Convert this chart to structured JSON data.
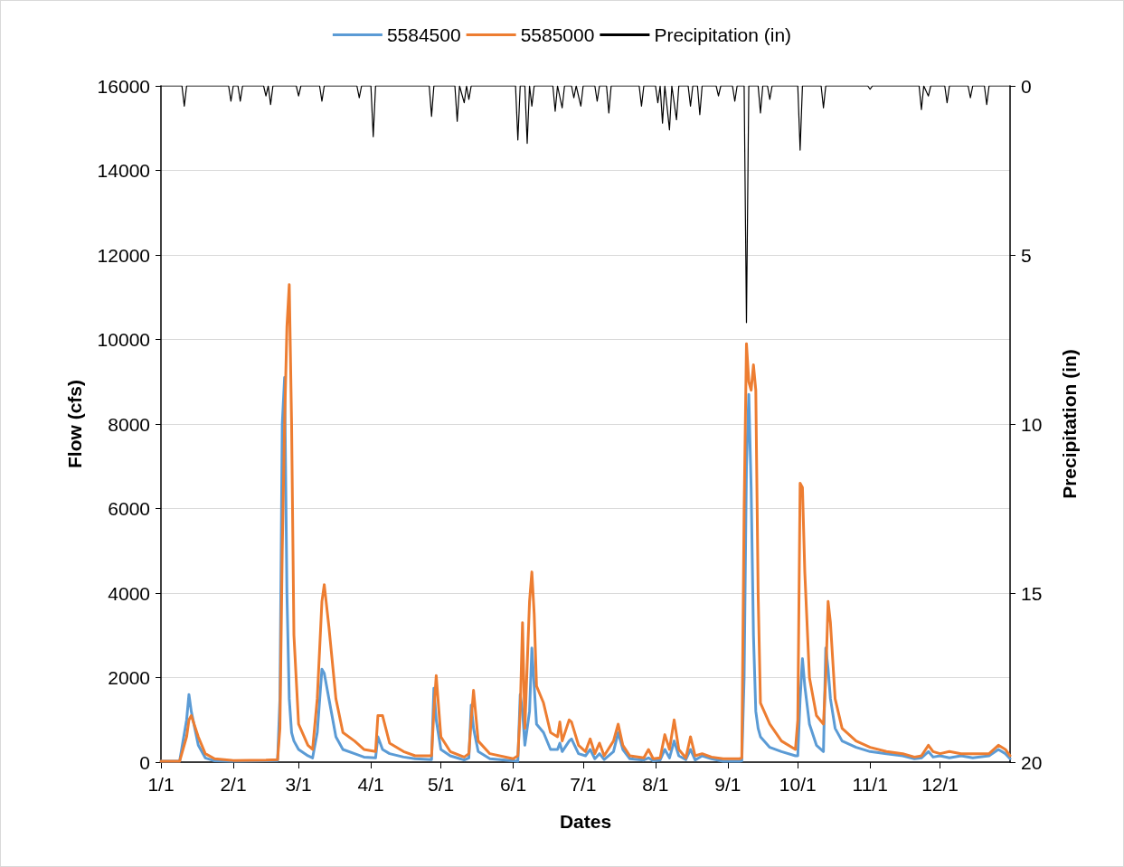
{
  "chart_data": {
    "type": "line",
    "xlabel": "Dates",
    "ylabel": "Flow (cfs)",
    "y2label": "Precipitation (in)",
    "x": [
      "--01-01",
      "--01-09",
      "--01-12",
      "--01-13",
      "--01-14",
      "--01-17",
      "--01-20",
      "--01-24",
      "--02-01",
      "--02-15",
      "--02-20",
      "--02-21",
      "--02-22",
      "--02-23",
      "--02-24",
      "--02-25",
      "--02-26",
      "--02-27",
      "--03-01",
      "--03-05",
      "--03-07",
      "--03-09",
      "--03-11",
      "--03-12",
      "--03-14",
      "--03-17",
      "--03-20",
      "--03-25",
      "--03-29",
      "--04-03",
      "--04-04",
      "--04-06",
      "--04-09",
      "--04-15",
      "--04-20",
      "--04-27",
      "--04-28",
      "--04-29",
      "--05-01",
      "--05-05",
      "--05-11",
      "--05-13",
      "--05-14",
      "--05-15",
      "--05-17",
      "--05-22",
      "--06-01",
      "--06-03",
      "--06-04",
      "--06-05",
      "--06-06",
      "--06-08",
      "--06-09",
      "--06-10",
      "--06-11",
      "--06-14",
      "--06-17",
      "--06-20",
      "--06-21",
      "--06-22",
      "--06-25",
      "--06-26",
      "--06-29",
      "--07-02",
      "--07-04",
      "--07-06",
      "--07-08",
      "--07-10",
      "--07-14",
      "--07-16",
      "--07-18",
      "--07-21",
      "--07-27",
      "--07-29",
      "--07-31",
      "--08-03",
      "--08-05",
      "--08-07",
      "--08-09",
      "--08-11",
      "--08-14",
      "--08-16",
      "--08-18",
      "--08-21",
      "--08-25",
      "--08-30",
      "--09-06",
      "--09-07",
      "--09-08",
      "--09-09",
      "--09-10",
      "--09-11",
      "--09-12",
      "--09-13",
      "--09-14",
      "--09-15",
      "--09-19",
      "--09-24",
      "--09-30",
      "--10-01",
      "--10-02",
      "--10-03",
      "--10-04",
      "--10-06",
      "--10-09",
      "--10-12",
      "--10-13",
      "--10-14",
      "--10-15",
      "--10-17",
      "--10-20",
      "--10-26",
      "--11-01",
      "--11-08",
      "--11-15",
      "--11-20",
      "--11-23",
      "--11-26",
      "--11-28",
      "--12-01",
      "--12-05",
      "--12-10",
      "--12-15",
      "--12-22",
      "--12-26",
      "--12-29",
      "--12-31"
    ],
    "xlim": [
      "--01-01",
      "--12-31"
    ],
    "xticks": [
      {
        "value": "--01-01",
        "label": "1/1"
      },
      {
        "value": "--02-01",
        "label": "2/1"
      },
      {
        "value": "--03-01",
        "label": "3/1"
      },
      {
        "value": "--04-01",
        "label": "4/1"
      },
      {
        "value": "--05-01",
        "label": "5/1"
      },
      {
        "value": "--06-01",
        "label": "6/1"
      },
      {
        "value": "--07-01",
        "label": "7/1"
      },
      {
        "value": "--08-01",
        "label": "8/1"
      },
      {
        "value": "--09-01",
        "label": "9/1"
      },
      {
        "value": "--10-01",
        "label": "10/1"
      },
      {
        "value": "--11-01",
        "label": "11/1"
      },
      {
        "value": "--12-01",
        "label": "12/1"
      }
    ],
    "ylim": [
      0,
      16000
    ],
    "yticks": [
      0,
      2000,
      4000,
      6000,
      8000,
      10000,
      12000,
      14000,
      16000
    ],
    "y2lim": [
      20,
      0
    ],
    "y2ticks": [
      0,
      5,
      10,
      15,
      20
    ],
    "grid": "y",
    "legend": "top",
    "marker": "none",
    "line_style": "solid",
    "series": [
      {
        "name": "5584500",
        "color": "#5b9bd5",
        "values": [
          20,
          20,
          1000,
          1600,
          1200,
          400,
          100,
          30,
          20,
          30,
          40,
          1500,
          8000,
          9100,
          4000,
          1500,
          700,
          500,
          300,
          150,
          100,
          700,
          2200,
          2100,
          1500,
          600,
          300,
          200,
          120,
          100,
          600,
          300,
          200,
          120,
          80,
          60,
          1750,
          1000,
          300,
          150,
          50,
          100,
          1350,
          800,
          250,
          80,
          30,
          20,
          1600,
          1200,
          400,
          1200,
          2700,
          1800,
          900,
          700,
          300,
          300,
          450,
          250,
          500,
          550,
          200,
          150,
          300,
          80,
          200,
          60,
          250,
          700,
          300,
          80,
          50,
          100,
          30,
          50,
          300,
          100,
          500,
          150,
          60,
          300,
          50,
          150,
          80,
          20,
          20,
          30,
          2000,
          7000,
          8700,
          6500,
          3000,
          1200,
          800,
          600,
          350,
          250,
          150,
          150,
          1500,
          2450,
          1800,
          900,
          400,
          250,
          2700,
          2200,
          1500,
          800,
          500,
          350,
          250,
          200,
          150,
          80,
          100,
          250,
          120,
          150,
          100,
          150,
          100,
          150,
          300,
          200,
          80
        ]
      },
      {
        "name": "5585000",
        "color": "#ed7d31",
        "values": [
          20,
          20,
          600,
          1000,
          1100,
          600,
          200,
          80,
          40,
          50,
          60,
          800,
          5000,
          8000,
          10300,
          11300,
          8000,
          3000,
          900,
          400,
          300,
          1500,
          3800,
          4200,
          3200,
          1500,
          700,
          500,
          300,
          250,
          1100,
          1100,
          450,
          250,
          150,
          150,
          1200,
          2050,
          600,
          250,
          120,
          200,
          1000,
          1700,
          500,
          200,
          80,
          150,
          1200,
          3300,
          800,
          3800,
          4500,
          3500,
          1800,
          1400,
          700,
          600,
          950,
          500,
          1000,
          950,
          400,
          250,
          550,
          200,
          450,
          150,
          500,
          900,
          400,
          150,
          100,
          300,
          80,
          100,
          650,
          300,
          1000,
          300,
          100,
          600,
          150,
          200,
          120,
          80,
          80,
          100,
          6000,
          9900,
          9000,
          8800,
          9400,
          8800,
          4000,
          1400,
          900,
          500,
          300,
          1000,
          6600,
          6500,
          4500,
          2000,
          1100,
          900,
          2000,
          3800,
          3300,
          1500,
          800,
          500,
          350,
          250,
          200,
          120,
          150,
          400,
          250,
          200,
          250,
          200,
          200,
          200,
          400,
          300,
          150
        ]
      },
      {
        "name": "Precipitation (in)",
        "color": "#000000",
        "axis": "y2",
        "x": [
          "--01-01",
          "--01-10",
          "--01-11",
          "--01-12",
          "--01-30",
          "--01-31",
          "--02-01",
          "--02-03",
          "--02-04",
          "--02-05",
          "--02-14",
          "--02-15",
          "--02-16",
          "--02-17",
          "--02-18",
          "--02-28",
          "--03-01",
          "--03-02",
          "--03-10",
          "--03-11",
          "--03-12",
          "--03-26",
          "--03-27",
          "--03-28",
          "--04-01",
          "--04-02",
          "--04-03",
          "--04-26",
          "--04-27",
          "--04-28",
          "--05-07",
          "--05-08",
          "--05-09",
          "--05-11",
          "--05-12",
          "--05-13",
          "--05-14",
          "--06-02",
          "--06-03",
          "--06-04",
          "--06-06",
          "--06-07",
          "--06-08",
          "--06-09",
          "--06-10",
          "--06-18",
          "--06-19",
          "--06-20",
          "--06-22",
          "--06-23",
          "--06-26",
          "--06-27",
          "--06-28",
          "--06-30",
          "--07-01",
          "--07-06",
          "--07-07",
          "--07-08",
          "--07-11",
          "--07-12",
          "--07-13",
          "--07-25",
          "--07-26",
          "--07-27",
          "--08-01",
          "--08-02",
          "--08-03",
          "--08-04",
          "--08-05",
          "--08-07",
          "--08-08",
          "--08-10",
          "--08-11",
          "--08-15",
          "--08-16",
          "--08-17",
          "--08-19",
          "--08-20",
          "--08-21",
          "--08-27",
          "--08-28",
          "--08-29",
          "--09-03",
          "--09-04",
          "--09-05",
          "--09-08",
          "--09-09",
          "--09-10",
          "--09-14",
          "--09-15",
          "--09-16",
          "--09-18",
          "--09-19",
          "--09-20",
          "--10-01",
          "--10-02",
          "--10-03",
          "--10-11",
          "--10-12",
          "--10-13",
          "--10-31",
          "--11-01",
          "--11-02",
          "--11-22",
          "--11-23",
          "--11-24",
          "--11-26",
          "--11-27",
          "--12-03",
          "--12-04",
          "--12-05",
          "--12-13",
          "--12-14",
          "--12-15",
          "--12-20",
          "--12-21",
          "--12-22",
          "--12-31"
        ],
        "values": [
          0,
          0,
          0.6,
          0,
          0,
          0.45,
          0,
          0,
          0.45,
          0,
          0,
          0.3,
          0,
          0.55,
          0,
          0,
          0.3,
          0,
          0,
          0.45,
          0,
          0,
          0.35,
          0,
          0,
          1.5,
          0,
          0,
          0.9,
          0,
          0,
          1.05,
          0,
          0.5,
          0,
          0.4,
          0,
          0,
          1.6,
          0,
          0,
          1.7,
          0,
          0.6,
          0,
          0,
          0.75,
          0,
          0.65,
          0,
          0,
          0.35,
          0,
          0.6,
          0,
          0,
          0.45,
          0,
          0,
          0.8,
          0,
          0,
          0.6,
          0,
          0,
          0.5,
          0,
          1.1,
          0,
          1.3,
          0,
          1.0,
          0,
          0,
          0.6,
          0,
          0,
          0.85,
          0,
          0,
          0.3,
          0,
          0,
          0.45,
          0,
          0,
          7.0,
          0,
          0,
          0.8,
          0,
          0,
          0.4,
          0,
          0,
          1.9,
          0,
          0,
          0.65,
          0,
          0,
          0.1,
          0,
          0,
          0.7,
          0,
          0.3,
          0,
          0,
          0.5,
          0,
          0,
          0.35,
          0,
          0,
          0.55,
          0,
          0
        ]
      }
    ]
  }
}
